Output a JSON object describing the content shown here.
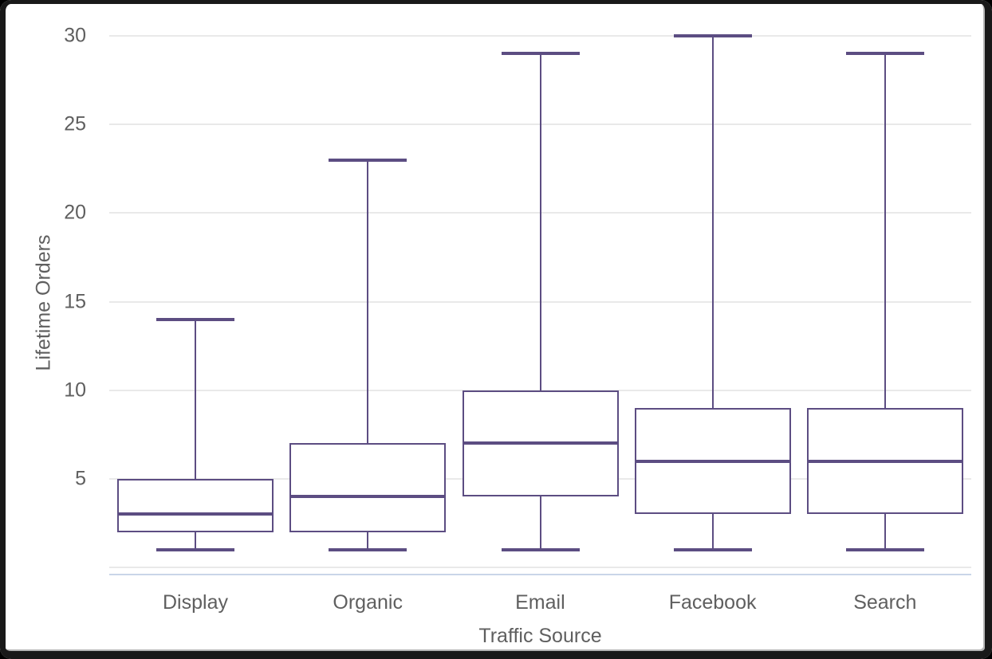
{
  "chart_data": {
    "type": "boxplot",
    "xlabel": "Traffic Source",
    "ylabel": "Lifetime Orders",
    "categories": [
      "Display",
      "Organic",
      "Email",
      "Facebook",
      "Search"
    ],
    "series": [
      {
        "name": "Display",
        "min": 1,
        "q1": 2,
        "median": 3,
        "q3": 5,
        "max": 14
      },
      {
        "name": "Organic",
        "min": 1,
        "q1": 2,
        "median": 4,
        "q3": 7,
        "max": 23
      },
      {
        "name": "Email",
        "min": 1,
        "q1": 4,
        "median": 7,
        "q3": 10,
        "max": 29
      },
      {
        "name": "Facebook",
        "min": 1,
        "q1": 3,
        "median": 6,
        "q3": 9,
        "max": 30
      },
      {
        "name": "Search",
        "min": 1,
        "q1": 3,
        "median": 6,
        "q3": 9,
        "max": 29
      }
    ],
    "ylim": [
      0,
      30
    ],
    "yticks": [
      5,
      10,
      15,
      20,
      25,
      30
    ],
    "grid": true,
    "legend": "none",
    "colors": {
      "box_stroke": "#5c4d82",
      "gridline": "#e9e9e9",
      "baseline": "#c9d5e8",
      "label_text": "#5f5f5f"
    }
  }
}
